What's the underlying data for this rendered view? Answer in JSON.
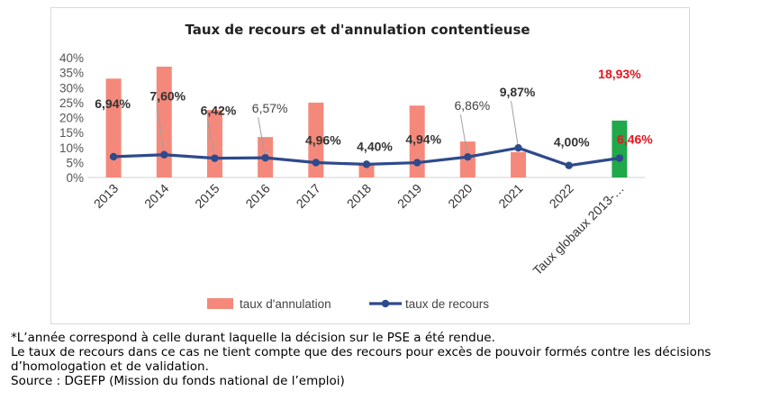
{
  "chart_data": {
    "type": "bar+line",
    "title": "Taux de recours et d'annulation contentieuse",
    "categories": [
      "2013",
      "2014",
      "2015",
      "2016",
      "2017",
      "2018",
      "2019",
      "2020",
      "2021",
      "2022",
      "Taux globaux 2013-…"
    ],
    "series": [
      {
        "name": "taux d'annulation",
        "kind": "bar",
        "color": "#f4897b",
        "highlight_color": "#21a84a",
        "values": [
          33,
          37,
          22.5,
          13.5,
          25,
          4.4,
          24,
          12,
          8.5,
          null,
          19
        ],
        "data_labels": [
          "",
          "",
          "",
          "",
          "",
          "",
          "",
          "",
          "",
          "",
          "18,93%"
        ]
      },
      {
        "name": "taux de recours",
        "kind": "line",
        "color": "#2e4a8c",
        "values": [
          6.94,
          7.6,
          6.42,
          6.57,
          4.96,
          4.4,
          4.94,
          6.86,
          9.87,
          4.0,
          6.46
        ],
        "data_labels": [
          "6,94%",
          "7,60%",
          "6,42%",
          "6,57%",
          "4,96%",
          "4,40%",
          "4,94%",
          "6,86%",
          "9,87%",
          "4,00%",
          "6,46%"
        ]
      }
    ],
    "y_ticks": [
      "0%",
      "5%",
      "10%",
      "15%",
      "20%",
      "25%",
      "30%",
      "35%",
      "40%"
    ],
    "ylim": [
      0,
      40
    ],
    "legend_position": "bottom",
    "grid": false
  },
  "notes": {
    "line1": "*L’année correspond à celle durant laquelle la décision sur le PSE a été rendue.",
    "line2": "Le taux de recours dans ce cas ne tient compte que des recours pour excès de pouvoir formés contre les décisions d’homologation et de validation.",
    "line3": "Source : DGEFP (Mission du fonds national de l’emploi)"
  }
}
